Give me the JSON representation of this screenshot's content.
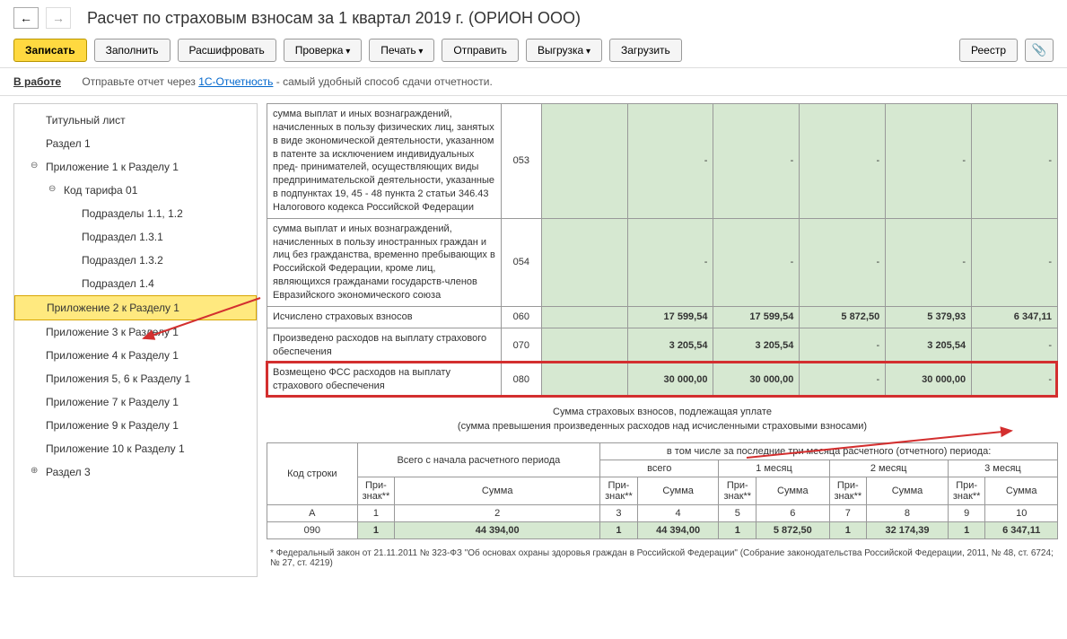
{
  "title": "Расчет по страховым взносам за 1 квартал 2019 г. (ОРИОН ООО)",
  "toolbar": {
    "save": "Записать",
    "fill": "Заполнить",
    "decrypt": "Расшифровать",
    "check": "Проверка",
    "print": "Печать",
    "send": "Отправить",
    "export": "Выгрузка",
    "import": "Загрузить",
    "registry": "Реестр"
  },
  "status": {
    "label": "В работе",
    "text1": "Отправьте отчет через ",
    "link": "1С-Отчетность",
    "text2": " - самый удобный способ сдачи отчетности."
  },
  "tree": [
    {
      "label": "Титульный лист",
      "level": 1
    },
    {
      "label": "Раздел 1",
      "level": 1
    },
    {
      "label": "Приложение 1 к Разделу 1",
      "level": 1,
      "toggle": "⊖"
    },
    {
      "label": "Код тарифа 01",
      "level": 2,
      "toggle": "⊖"
    },
    {
      "label": "Подразделы 1.1, 1.2",
      "level": 3
    },
    {
      "label": "Подраздел 1.3.1",
      "level": 3
    },
    {
      "label": "Подраздел 1.3.2",
      "level": 3
    },
    {
      "label": "Подраздел 1.4",
      "level": 3
    },
    {
      "label": "Приложение 2 к Разделу 1",
      "level": 1,
      "highlight": true
    },
    {
      "label": "Приложение 3 к Разделу 1",
      "level": 1
    },
    {
      "label": "Приложение 4 к Разделу 1",
      "level": 1
    },
    {
      "label": "Приложения 5, 6 к Разделу 1",
      "level": 1
    },
    {
      "label": "Приложение 7 к Разделу 1",
      "level": 1
    },
    {
      "label": "Приложение 9 к Разделу 1",
      "level": 1
    },
    {
      "label": "Приложение 10 к Разделу 1",
      "level": 1
    },
    {
      "label": "Раздел 3",
      "level": 1,
      "toggle": "⊕"
    }
  ],
  "rows": [
    {
      "desc": "сумма выплат и иных вознаграждений, начисленных в пользу физических лиц, занятых в виде экономической деятельности, указанном в патенте за исключением индивидуальных пред- принимателей, осуществляющих виды предпринимательской деятельности, указанные в подпунктах 19, 45 - 48 пункта 2 статьи 346.43 Налогового кодекса Российской Федерации",
      "code": "053",
      "v": [
        "",
        "-",
        "-",
        "-",
        "-",
        "-"
      ]
    },
    {
      "desc": "сумма выплат и иных вознаграждений, начисленных в пользу иностранных граждан и лиц без гражданства, временно пребывающих в Российской Федерации, кроме лиц, являющихся гражданами государств-членов Евразийского экономического союза",
      "code": "054",
      "v": [
        "",
        "-",
        "-",
        "-",
        "-",
        "-"
      ]
    },
    {
      "desc": "Исчислено страховых взносов",
      "code": "060",
      "v": [
        "",
        "17 599,54",
        "17 599,54",
        "5 872,50",
        "5 379,93",
        "6 347,11"
      ]
    },
    {
      "desc": "Произведено расходов на выплату страхового обеспечения",
      "code": "070",
      "v": [
        "",
        "3 205,54",
        "3 205,54",
        "-",
        "3 205,54",
        "-"
      ]
    },
    {
      "desc": "Возмещено ФСС расходов на выплату страхового обеспечения",
      "code": "080",
      "v": [
        "",
        "30 000,00",
        "30 000,00",
        "-",
        "30 000,00",
        "-"
      ],
      "hl": true
    }
  ],
  "section": {
    "title": "Сумма страховых взносов, подлежащая уплате",
    "sub": "(сумма превышения произведенных расходов над исчисленными страховыми взносами)"
  },
  "subhead": {
    "code": "Код строки",
    "total": "Всего с начала расчетного периода",
    "group": "в том числе за последние три месяца расчетного (отчетного) периода:",
    "all": "всего",
    "m1": "1 месяц",
    "m2": "2 месяц",
    "m3": "3 месяц",
    "sign": "При- знак**",
    "sum": "Сумма"
  },
  "subletters": [
    "А",
    "1",
    "2",
    "3",
    "4",
    "5",
    "6",
    "7",
    "8",
    "9",
    "10"
  ],
  "subrow": {
    "code": "090",
    "v": [
      "1",
      "44 394,00",
      "1",
      "44 394,00",
      "1",
      "5 872,50",
      "1",
      "32 174,39",
      "1",
      "6 347,11"
    ]
  },
  "footnote": "*  Федеральный закон от 21.11.2011 № 323-ФЗ \"Об основах охраны здоровья граждан в Российской Федерации\" (Собрание законодательства Российской Федерации, 2011, № 48, ст. 6724; № 27, ст. 4219)"
}
